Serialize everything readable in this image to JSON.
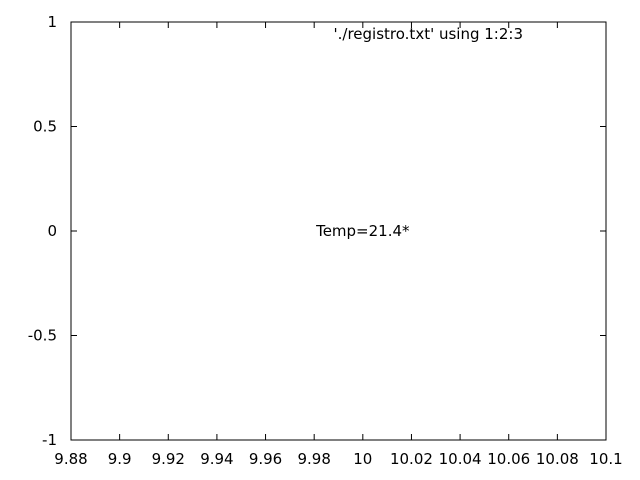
{
  "chart_data": {
    "type": "scatter",
    "xlim": [
      9.88,
      10.1
    ],
    "ylim": [
      -1,
      1
    ],
    "xticks": [
      "9.88",
      "9.9",
      "9.92",
      "9.94",
      "9.96",
      "9.98",
      "10",
      "10.02",
      "10.04",
      "10.06",
      "10.08",
      "10.1"
    ],
    "yticks": [
      "-1",
      "-0.5",
      "0",
      "0.5",
      "1"
    ],
    "grid": false,
    "legend_position": "top-right",
    "series": [
      {
        "name": "'./registro.txt' using 1:2:3",
        "style": "labels",
        "points": [
          {
            "x": 10,
            "y": 0,
            "label": "Temp=21.4*"
          }
        ]
      }
    ]
  }
}
